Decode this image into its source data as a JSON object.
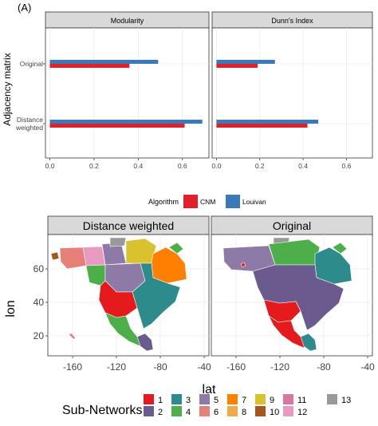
{
  "panel_label": "(A)",
  "chart_data": [
    {
      "type": "bar",
      "orientation": "horizontal",
      "ylabel": "Adjacency matrix",
      "categories": [
        "Original",
        "Distance weighted"
      ],
      "category_lines": [
        [
          "Original"
        ],
        [
          "Distance",
          "weighted"
        ]
      ],
      "facets": [
        "Modularity",
        "Dunn's Index"
      ],
      "series": [
        {
          "name": "Louivan",
          "color": "#3a7ab8",
          "values": {
            "Modularity": [
              0.49,
              0.69
            ],
            "Dunn's Index": [
              0.27,
              0.47
            ]
          }
        },
        {
          "name": "CNM",
          "color": "#e0212b",
          "values": {
            "Modularity": [
              0.36,
              0.61
            ],
            "Dunn's Index": [
              0.19,
              0.42
            ]
          }
        }
      ],
      "xlim": [
        -0.02,
        0.72
      ],
      "xticks": [
        0.0,
        0.2,
        0.4,
        0.6
      ],
      "xtick_labels": [
        "0.0",
        "0.2",
        "0.4",
        "0.6"
      ],
      "legend": {
        "title": "Algorithm",
        "position": "bottom",
        "items": [
          "CNM",
          "Louivan"
        ]
      },
      "grid": true
    },
    {
      "type": "map",
      "facets": [
        "Distance weighted",
        "Original"
      ],
      "xlabel": "lat",
      "ylabel": "lon",
      "xticks": [
        "-160",
        "-120",
        "-80",
        "-40"
      ],
      "yticks": [
        "20",
        "40",
        "60"
      ],
      "legend": {
        "title": "Sub-Networks",
        "position": "bottom",
        "items": [
          {
            "label": "1",
            "color": "#e41a1c"
          },
          {
            "label": "2",
            "color": "#6a5a8e"
          },
          {
            "label": "3",
            "color": "#2e8b8b"
          },
          {
            "label": "4",
            "color": "#4daf4a"
          },
          {
            "label": "5",
            "color": "#8e7aa6"
          },
          {
            "label": "6",
            "color": "#e8807a"
          },
          {
            "label": "7",
            "color": "#ff7f00"
          },
          {
            "label": "8",
            "color": "#f1a84e"
          },
          {
            "label": "9",
            "color": "#d9c22e"
          },
          {
            "label": "10",
            "color": "#a6561d"
          },
          {
            "label": "11",
            "color": "#d8789e"
          },
          {
            "label": "12",
            "color": "#e89ac0"
          },
          {
            "label": "13",
            "color": "#999999"
          }
        ]
      }
    }
  ]
}
